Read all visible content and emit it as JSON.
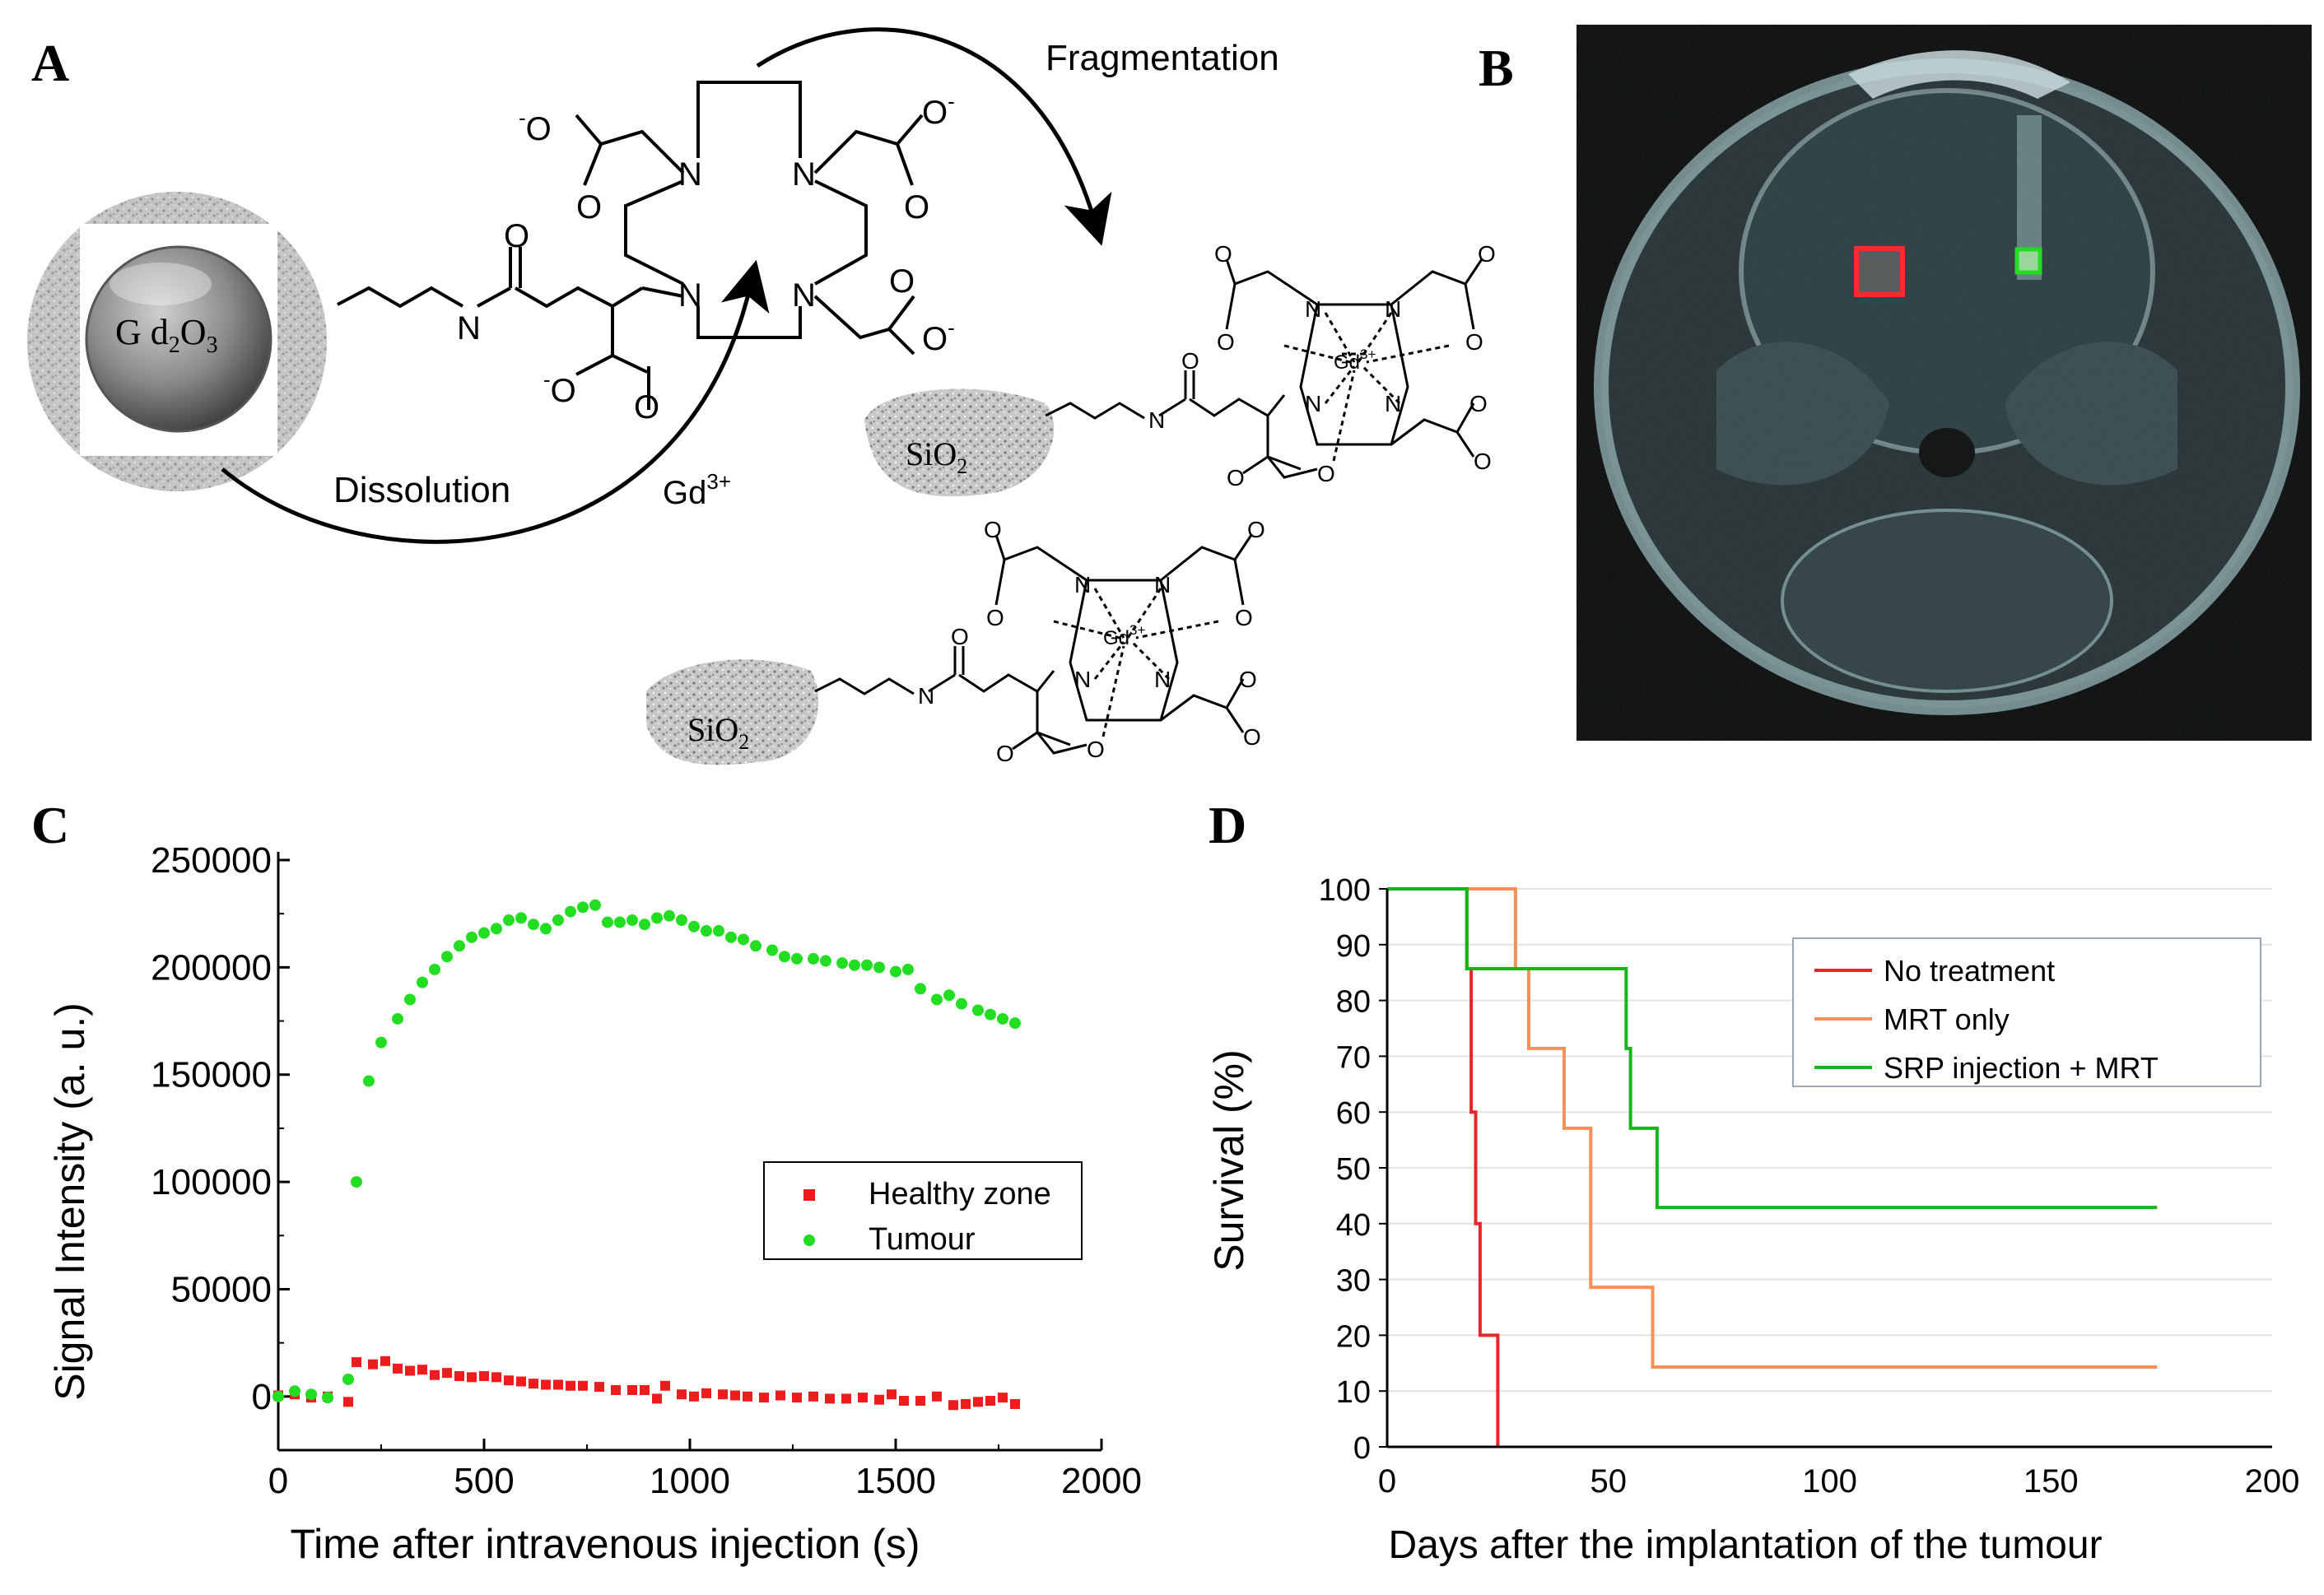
{
  "panels": {
    "a": {
      "letter": "A",
      "fragmentation_label": "Fragmentation",
      "dissolution_label": "Dissolution",
      "gd_ion_label_main": "Gd",
      "gd_ion_label_sup": "3+",
      "core_label_main": "G d",
      "core_label_sub": "2",
      "core_label_mid": "O",
      "core_label_sub2": "3",
      "sio2_main": "SiO",
      "sio2_sub": "2",
      "atom_N": "N",
      "atom_O": "O",
      "anion_O": "O",
      "minus": "-",
      "gd_complex_main": "Gd",
      "gd_complex_sup": "3+"
    },
    "b": {
      "letter": "B",
      "colors": {
        "roi_healthy": "#ff2a2a",
        "roi_tumour": "#22dd22"
      }
    },
    "c": {
      "letter": "C",
      "chart_data": {
        "type": "scatter",
        "xlabel": "Time after intravenous injection (s)",
        "ylabel": "Signal Intensity (a. u.)",
        "xlim": [
          0,
          2000
        ],
        "ylim": [
          -25000,
          250000
        ],
        "xticks": [
          0,
          500,
          1000,
          1500,
          2000
        ],
        "yticks": [
          0,
          50000,
          100000,
          150000,
          200000,
          250000
        ],
        "legend_position": "center-right",
        "series": [
          {
            "name": "Healthy zone",
            "color": "#ee1c1c",
            "marker": "square",
            "points": [
              [
                0,
                500
              ],
              [
                40,
                1000
              ],
              [
                80,
                -500
              ],
              [
                120,
                0
              ],
              [
                170,
                -2500
              ],
              [
                190,
                16000
              ],
              [
                230,
                15000
              ],
              [
                260,
                16500
              ],
              [
                290,
                13000
              ],
              [
                320,
                12000
              ],
              [
                350,
                12500
              ],
              [
                380,
                10000
              ],
              [
                410,
                11000
              ],
              [
                440,
                9500
              ],
              [
                470,
                9000
              ],
              [
                500,
                9500
              ],
              [
                530,
                9000
              ],
              [
                560,
                7500
              ],
              [
                590,
                7000
              ],
              [
                620,
                6000
              ],
              [
                650,
                5500
              ],
              [
                680,
                5500
              ],
              [
                710,
                5000
              ],
              [
                740,
                5000
              ],
              [
                780,
                4500
              ],
              [
                820,
                3000
              ],
              [
                860,
                3000
              ],
              [
                890,
                3000
              ],
              [
                920,
                -1000
              ],
              [
                940,
                5000
              ],
              [
                980,
                1000
              ],
              [
                1010,
                0
              ],
              [
                1040,
                1500
              ],
              [
                1080,
                1000
              ],
              [
                1110,
                500
              ],
              [
                1140,
                0
              ],
              [
                1180,
                -500
              ],
              [
                1220,
                500
              ],
              [
                1260,
                -500
              ],
              [
                1300,
                0
              ],
              [
                1340,
                -1000
              ],
              [
                1380,
                -1000
              ],
              [
                1420,
                -500
              ],
              [
                1460,
                -1500
              ],
              [
                1490,
                1000
              ],
              [
                1520,
                -2000
              ],
              [
                1560,
                -2000
              ],
              [
                1600,
                0
              ],
              [
                1640,
                -4000
              ],
              [
                1670,
                -3500
              ],
              [
                1700,
                -2500
              ],
              [
                1730,
                -2000
              ],
              [
                1760,
                -500
              ],
              [
                1790,
                -3500
              ]
            ]
          },
          {
            "name": "Tumour",
            "color": "#22dd22",
            "marker": "circle",
            "points": [
              [
                0,
                0
              ],
              [
                40,
                2500
              ],
              [
                80,
                1000
              ],
              [
                120,
                -500
              ],
              [
                170,
                8000
              ],
              [
                190,
                100000
              ],
              [
                220,
                147000
              ],
              [
                250,
                165000
              ],
              [
                290,
                176000
              ],
              [
                320,
                185000
              ],
              [
                350,
                193000
              ],
              [
                380,
                199000
              ],
              [
                410,
                205000
              ],
              [
                440,
                210000
              ],
              [
                470,
                214000
              ],
              [
                500,
                216000
              ],
              [
                530,
                218000
              ],
              [
                560,
                222000
              ],
              [
                590,
                223000
              ],
              [
                620,
                220000
              ],
              [
                650,
                218000
              ],
              [
                680,
                222000
              ],
              [
                710,
                226000
              ],
              [
                740,
                228000
              ],
              [
                770,
                229000
              ],
              [
                800,
                221000
              ],
              [
                830,
                221000
              ],
              [
                860,
                222000
              ],
              [
                890,
                220000
              ],
              [
                920,
                223000
              ],
              [
                950,
                224000
              ],
              [
                980,
                222000
              ],
              [
                1010,
                219000
              ],
              [
                1040,
                217000
              ],
              [
                1070,
                217000
              ],
              [
                1100,
                214000
              ],
              [
                1130,
                213000
              ],
              [
                1160,
                210000
              ],
              [
                1200,
                208000
              ],
              [
                1230,
                205000
              ],
              [
                1260,
                204000
              ],
              [
                1300,
                204000
              ],
              [
                1330,
                203000
              ],
              [
                1370,
                202000
              ],
              [
                1400,
                201000
              ],
              [
                1430,
                201000
              ],
              [
                1460,
                200000
              ],
              [
                1500,
                198000
              ],
              [
                1530,
                199000
              ],
              [
                1560,
                190000
              ],
              [
                1600,
                185000
              ],
              [
                1630,
                187000
              ],
              [
                1660,
                183000
              ],
              [
                1700,
                180000
              ],
              [
                1730,
                178000
              ],
              [
                1760,
                176000
              ],
              [
                1790,
                174000
              ]
            ]
          }
        ]
      }
    },
    "d": {
      "letter": "D",
      "chart_data": {
        "type": "line",
        "step": true,
        "xlabel": "Days after the implantation of the tumour",
        "ylabel": "Survival (%)",
        "xlim": [
          0,
          200
        ],
        "ylim": [
          0,
          100
        ],
        "xticks": [
          0,
          50,
          100,
          150,
          200
        ],
        "yticks": [
          0,
          10,
          20,
          30,
          40,
          50,
          60,
          70,
          80,
          90,
          100
        ],
        "grid": true,
        "legend_position": "top-right",
        "series": [
          {
            "name": "No treatment",
            "color": "#e8262a",
            "points": [
              [
                0,
                100
              ],
              [
                18,
                100
              ],
              [
                18,
                85.7
              ],
              [
                19,
                85.7
              ],
              [
                19,
                71.4
              ],
              [
                19,
                60
              ],
              [
                20,
                60
              ],
              [
                20,
                40
              ],
              [
                21,
                40
              ],
              [
                21,
                20
              ],
              [
                25,
                20
              ],
              [
                25,
                0
              ]
            ]
          },
          {
            "name": "MRT only",
            "color": "#f79058",
            "points": [
              [
                0,
                100
              ],
              [
                29,
                100
              ],
              [
                29,
                85.7
              ],
              [
                32,
                85.7
              ],
              [
                32,
                71.4
              ],
              [
                40,
                71.4
              ],
              [
                40,
                57.1
              ],
              [
                46,
                57.1
              ],
              [
                46,
                28.6
              ],
              [
                60,
                28.6
              ],
              [
                60,
                14.3
              ],
              [
                174,
                14.3
              ]
            ]
          },
          {
            "name": "SRP injection + MRT",
            "color": "#16b51b",
            "points": [
              [
                0,
                100
              ],
              [
                18,
                100
              ],
              [
                18,
                85.7
              ],
              [
                54,
                85.7
              ],
              [
                54,
                71.4
              ],
              [
                55,
                71.4
              ],
              [
                55,
                57.1
              ],
              [
                61,
                57.1
              ],
              [
                61,
                42.9
              ],
              [
                174,
                42.9
              ]
            ]
          }
        ]
      }
    }
  }
}
